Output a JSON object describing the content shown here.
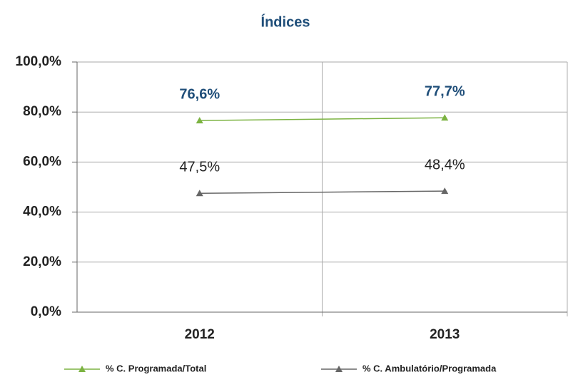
{
  "chart_data": {
    "type": "line",
    "title": "Índices",
    "categories": [
      "2012",
      "2013"
    ],
    "series": [
      {
        "name": "% C. Programada/Total",
        "color": "#7cb342",
        "label_color": "#1f4e79",
        "values": [
          76.6,
          77.7
        ],
        "value_labels": [
          "76,6%",
          "77,7%"
        ]
      },
      {
        "name": "% C. Ambulatório/Programada",
        "color": "#666666",
        "label_color": "#222222",
        "values": [
          47.5,
          48.4
        ],
        "value_labels": [
          "47,5%",
          "48,4%"
        ]
      }
    ],
    "ylim": [
      0,
      100
    ],
    "yticks": [
      {
        "value": 0,
        "label": "0,0%"
      },
      {
        "value": 20,
        "label": "20,0%"
      },
      {
        "value": 40,
        "label": "40,0%"
      },
      {
        "value": 60,
        "label": "60,0%"
      },
      {
        "value": 80,
        "label": "80,0%"
      },
      {
        "value": 100,
        "label": "100,0%"
      }
    ],
    "grid": true,
    "legend": "bottom"
  }
}
